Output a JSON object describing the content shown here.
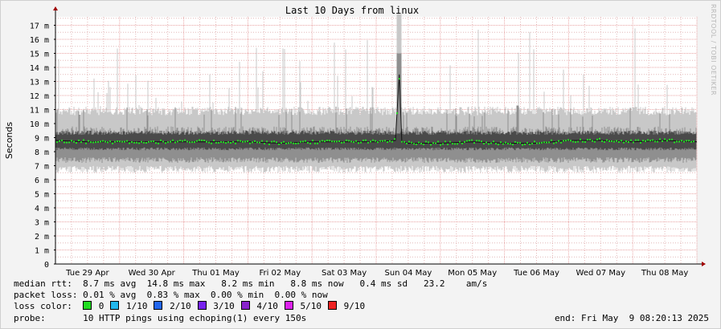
{
  "watermark": "RRDTOOL / TOBI OETIKER",
  "chart_data": {
    "type": "area",
    "title": "Last 10 Days from linux",
    "ylabel": "Seconds",
    "ylim": [
      0,
      17.6
    ],
    "yticks": [
      "0",
      "1 m",
      "2 m",
      "3 m",
      "4 m",
      "5 m",
      "6 m",
      "7 m",
      "8 m",
      "9 m",
      "10 m",
      "11 m",
      "12 m",
      "13 m",
      "14 m",
      "15 m",
      "16 m",
      "17 m"
    ],
    "ytick_values": [
      0,
      1,
      2,
      3,
      4,
      5,
      6,
      7,
      8,
      9,
      10,
      11,
      12,
      13,
      14,
      15,
      16,
      17
    ],
    "x_range_days": [
      0,
      10
    ],
    "xticks": [
      "Tue 29 Apr",
      "Wed 30 Apr",
      "Thu 01 May",
      "Fri 02 May",
      "Sat 03 May",
      "Sun 04 May",
      "Mon 05 May",
      "Tue 06 May",
      "Wed 07 May",
      "Thu 08 May"
    ],
    "grid": true,
    "series": [
      {
        "name": "median rtt",
        "color": "#22dd22",
        "x_days": [
          0,
          0.5,
          1,
          1.5,
          2,
          2.5,
          3,
          3.5,
          4,
          4.5,
          5,
          5.3,
          5.36,
          5.4,
          5.5,
          6,
          6.5,
          7,
          7.5,
          8,
          8.5,
          9,
          9.5,
          10
        ],
        "values_ms": [
          8.8,
          8.7,
          8.7,
          8.7,
          8.7,
          8.7,
          8.7,
          8.6,
          8.7,
          8.7,
          8.7,
          8.8,
          13.5,
          8.7,
          8.6,
          8.6,
          8.7,
          8.6,
          8.6,
          8.8,
          8.8,
          8.7,
          8.8,
          8.7
        ]
      }
    ],
    "smoke_ms": {
      "inner_band": [
        7.6,
        9.8
      ],
      "outer_band": [
        7.0,
        10.6
      ],
      "spike_max": 17.8
    }
  },
  "stats": {
    "median_rtt_label": "median rtt:",
    "median_rtt_values": "8.7 ms avg  14.8 ms max   8.2 ms min   8.8 ms now   0.4 ms sd   23.2    am/s",
    "packet_loss_label": "packet loss:",
    "packet_loss_values": "0.01 % avg  0.83 % max  0.00 % min  0.00 % now",
    "loss_color_label": "loss color:",
    "loss_colors": [
      {
        "label": "0",
        "color": "#22dd22"
      },
      {
        "label": "1/10",
        "color": "#22b8ee"
      },
      {
        "label": "2/10",
        "color": "#2266ee"
      },
      {
        "label": "3/10",
        "color": "#7722ee"
      },
      {
        "label": "4/10",
        "color": "#8822cc"
      },
      {
        "label": "5/10",
        "color": "#dd22ee"
      },
      {
        "label": "9/10",
        "color": "#ee2222"
      }
    ],
    "probe_label": "probe:",
    "probe_values": "10 HTTP pings using echoping(1) every 150s",
    "end": "end: Fri May  9 08:20:13 2025"
  }
}
